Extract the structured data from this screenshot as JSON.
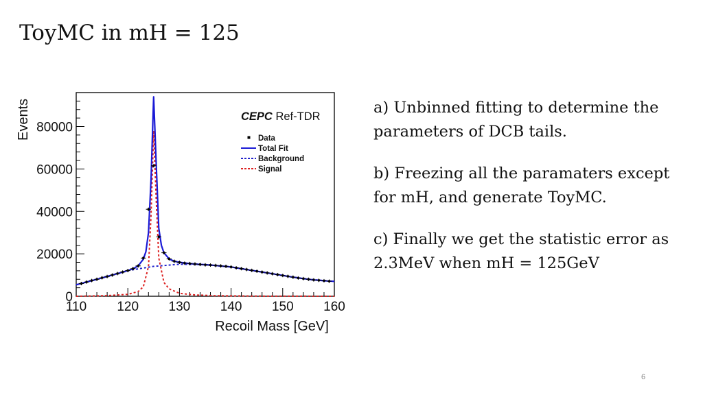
{
  "slide": {
    "title": "ToyMC in mH = 125",
    "bullets": [
      "a) Unbinned fitting to determine the parameters of DCB tails.",
      "b) Freezing all the paramaters except for mH, and generate ToyMC.",
      "c) Finally we get the statistic error as 2.3MeV when mH = 125GeV"
    ],
    "page_number": "6"
  },
  "chart_data": {
    "type": "line",
    "title": "",
    "brand": "CEPC",
    "brand_suffix": "Ref-TDR",
    "xlabel": "Recoil Mass [GeV]",
    "ylabel": "Events",
    "xlim": [
      110,
      160
    ],
    "ylim": [
      0,
      96000
    ],
    "xticks": [
      110,
      120,
      130,
      140,
      150,
      160
    ],
    "yticks": [
      0,
      20000,
      40000,
      60000,
      80000
    ],
    "grid": false,
    "legend_position": "top-right",
    "legend": [
      "Data",
      "Total Fit",
      "Background",
      "Signal"
    ],
    "colors": {
      "data": "#000000",
      "total": "#1a1ad6",
      "background": "#2222cc",
      "signal": "#dd2222"
    },
    "series": [
      {
        "name": "Data",
        "style": "points",
        "x": [
          111,
          112,
          113,
          114,
          115,
          116,
          117,
          118,
          119,
          120,
          121,
          122,
          123,
          124,
          125,
          126,
          127,
          128,
          129,
          130,
          131,
          132,
          133,
          134,
          135,
          136,
          137,
          138,
          139,
          140,
          141,
          142,
          143,
          144,
          145,
          146,
          147,
          148,
          149,
          150,
          151,
          152,
          153,
          154,
          155,
          156,
          157,
          158,
          159
        ],
        "y": [
          6000,
          6700,
          7400,
          8000,
          8700,
          9300,
          10000,
          10700,
          11400,
          12100,
          13000,
          14300,
          18000,
          41000,
          61500,
          28000,
          20500,
          17600,
          16500,
          16000,
          15600,
          15400,
          15200,
          15000,
          14800,
          14700,
          14500,
          14300,
          14100,
          13800,
          13400,
          13000,
          12600,
          12200,
          11800,
          11400,
          11000,
          10600,
          10200,
          9800,
          9400,
          9000,
          8600,
          8300,
          8000,
          7700,
          7500,
          7300,
          7100
        ]
      },
      {
        "name": "Total Fit",
        "style": "solid",
        "x": [
          110,
          112,
          114,
          116,
          118,
          120,
          121,
          122,
          123,
          123.5,
          124,
          124.5,
          125,
          125.5,
          126,
          126.5,
          127,
          128,
          129,
          130,
          132,
          134,
          136,
          138,
          140,
          142,
          144,
          146,
          148,
          150,
          152,
          154,
          156,
          158,
          160
        ],
        "y": [
          5400,
          6700,
          8000,
          9300,
          10700,
          12100,
          13000,
          14300,
          17500,
          21000,
          30000,
          55000,
          94000,
          62000,
          32000,
          24000,
          20500,
          17600,
          16500,
          16000,
          15400,
          15000,
          14700,
          14300,
          13800,
          13000,
          12200,
          11400,
          10600,
          9800,
          9000,
          8300,
          7700,
          7300,
          7000
        ]
      },
      {
        "name": "Background",
        "style": "dashed",
        "x": [
          110,
          115,
          120,
          125,
          130,
          135,
          140,
          145,
          150,
          155,
          160
        ],
        "y": [
          5400,
          8700,
          12100,
          14100,
          15100,
          14900,
          13800,
          11800,
          9800,
          8000,
          7000
        ]
      },
      {
        "name": "Signal",
        "style": "dashed",
        "x": [
          110,
          116,
          120,
          122,
          123,
          124,
          124.5,
          125,
          125.5,
          126,
          127,
          128,
          130,
          133,
          137,
          145,
          160
        ],
        "y": [
          0,
          300,
          900,
          2200,
          4500,
          14000,
          38000,
          78000,
          45000,
          18000,
          6500,
          3500,
          1400,
          600,
          250,
          60,
          0
        ]
      }
    ]
  }
}
